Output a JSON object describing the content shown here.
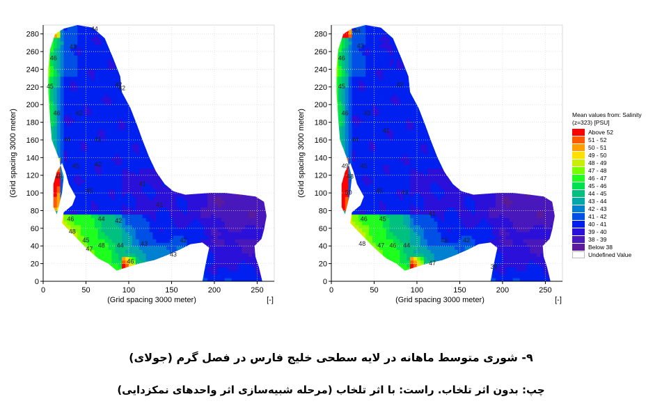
{
  "chart_data": [
    {
      "type": "heatmap",
      "xlabel": "(Grid spacing 3000 meter)",
      "ylabel": "(Grid spacing 3000 meter)",
      "x_unit_label": "[-]",
      "xlim": [
        0,
        270
      ],
      "ylim": [
        0,
        290
      ],
      "x_ticks": [
        0,
        50,
        100,
        150,
        200,
        250
      ],
      "y_ticks": [
        0,
        20,
        40,
        60,
        80,
        100,
        120,
        140,
        160,
        180,
        200,
        220,
        240,
        260,
        280
      ],
      "grid": true,
      "contour_labels": [
        {
          "text": "44",
          "x": 60,
          "y": 285
        },
        {
          "text": "43",
          "x": 35,
          "y": 265
        },
        {
          "text": "46",
          "x": 12,
          "y": 252
        },
        {
          "text": "42",
          "x": 88,
          "y": 222
        },
        {
          "text": "42",
          "x": 92,
          "y": 218
        },
        {
          "text": "45",
          "x": 8,
          "y": 220
        },
        {
          "text": "46",
          "x": 16,
          "y": 190
        },
        {
          "text": "42",
          "x": 42,
          "y": 190
        },
        {
          "text": "41",
          "x": 64,
          "y": 160
        },
        {
          "text": "44",
          "x": 28,
          "y": 160
        },
        {
          "text": "42",
          "x": 64,
          "y": 132
        },
        {
          "text": "45",
          "x": 38,
          "y": 130
        },
        {
          "text": "48",
          "x": 18,
          "y": 118
        },
        {
          "text": "41",
          "x": 116,
          "y": 110
        },
        {
          "text": "45",
          "x": 54,
          "y": 102
        },
        {
          "text": "41",
          "x": 136,
          "y": 86
        },
        {
          "text": "44",
          "x": 68,
          "y": 70
        },
        {
          "text": "42",
          "x": 88,
          "y": 68
        },
        {
          "text": "46",
          "x": 32,
          "y": 70
        },
        {
          "text": "48",
          "x": 34,
          "y": 56
        },
        {
          "text": "47",
          "x": 54,
          "y": 36
        },
        {
          "text": "48",
          "x": 68,
          "y": 40
        },
        {
          "text": "45",
          "x": 50,
          "y": 46
        },
        {
          "text": "44",
          "x": 90,
          "y": 40
        },
        {
          "text": "43",
          "x": 118,
          "y": 42
        },
        {
          "text": "42",
          "x": 164,
          "y": 46
        },
        {
          "text": "43",
          "x": 152,
          "y": 30
        },
        {
          "text": "46",
          "x": 102,
          "y": 22
        }
      ]
    },
    {
      "type": "heatmap",
      "xlabel": "(Grid spacing 3000 meter)",
      "ylabel": "(Grid spacing 3000 meter)",
      "x_unit_label": "[-]",
      "xlim": [
        0,
        270
      ],
      "ylim": [
        0,
        290
      ],
      "x_ticks": [
        0,
        50,
        100,
        150,
        200,
        250
      ],
      "y_ticks": [
        0,
        20,
        40,
        60,
        80,
        100,
        120,
        140,
        160,
        180,
        200,
        220,
        240,
        260,
        280
      ],
      "grid": true,
      "contour_labels": [
        {
          "text": "44",
          "x": 30,
          "y": 283
        },
        {
          "text": "43",
          "x": 34,
          "y": 266
        },
        {
          "text": "46",
          "x": 12,
          "y": 252
        },
        {
          "text": "42",
          "x": 80,
          "y": 222
        },
        {
          "text": "45",
          "x": 12,
          "y": 220
        },
        {
          "text": "46",
          "x": 16,
          "y": 190
        },
        {
          "text": "44",
          "x": 28,
          "y": 160
        },
        {
          "text": "42",
          "x": 42,
          "y": 190
        },
        {
          "text": "41",
          "x": 64,
          "y": 170
        },
        {
          "text": "45",
          "x": 38,
          "y": 130
        },
        {
          "text": "49",
          "x": 16,
          "y": 130
        },
        {
          "text": "48",
          "x": 22,
          "y": 118
        },
        {
          "text": "50",
          "x": 20,
          "y": 100
        },
        {
          "text": "45",
          "x": 56,
          "y": 102
        },
        {
          "text": "41",
          "x": 86,
          "y": 100
        },
        {
          "text": "41",
          "x": 118,
          "y": 76
        },
        {
          "text": "45",
          "x": 60,
          "y": 70
        },
        {
          "text": "46",
          "x": 38,
          "y": 70
        },
        {
          "text": "48",
          "x": 36,
          "y": 42
        },
        {
          "text": "47",
          "x": 58,
          "y": 40
        },
        {
          "text": "46",
          "x": 72,
          "y": 40
        },
        {
          "text": "44",
          "x": 88,
          "y": 40
        },
        {
          "text": "43",
          "x": 132,
          "y": 46
        },
        {
          "text": "42",
          "x": 158,
          "y": 46
        },
        {
          "text": "47",
          "x": 118,
          "y": 20
        },
        {
          "text": "39",
          "x": 190,
          "y": 16
        }
      ]
    }
  ],
  "legend": {
    "title_line1": "Mean values from: Salinity",
    "title_line2": "(z=323) [PSU]",
    "placement": "right",
    "entries": [
      {
        "label": "Above 52",
        "color": "#ff0000"
      },
      {
        "label": "51 - 52",
        "color": "#ff5a00"
      },
      {
        "label": "50 - 51",
        "color": "#ffa000"
      },
      {
        "label": "49 - 50",
        "color": "#ffe000"
      },
      {
        "label": "48 - 49",
        "color": "#c8f000"
      },
      {
        "label": "47 - 48",
        "color": "#78ff00"
      },
      {
        "label": "46 - 47",
        "color": "#1eff1e"
      },
      {
        "label": "45 - 46",
        "color": "#00e050"
      },
      {
        "label": "44 - 45",
        "color": "#00c080"
      },
      {
        "label": "43 - 44",
        "color": "#00a8a8"
      },
      {
        "label": "42 - 43",
        "color": "#0080d0"
      },
      {
        "label": "41 - 42",
        "color": "#0050e6"
      },
      {
        "label": "40 - 41",
        "color": "#0020f0"
      },
      {
        "label": "39 - 40",
        "color": "#2a10d8"
      },
      {
        "label": "38 - 39",
        "color": "#4818bc"
      },
      {
        "label": "Below 38",
        "color": "#5a1c9a"
      },
      {
        "label": "Undefined Value",
        "color": "#ffffff"
      }
    ]
  },
  "caption": {
    "line1": "۹- شوری متوسط ماهانه در لایه سطحی خلیج فارس در فصل گرم (جولای)",
    "line2": "چپ: بدون اثر تلخاب. راست: با اثر تلخاب (مرحله شبیه‌سازی اثر واحدهای نمکزدایی)"
  }
}
